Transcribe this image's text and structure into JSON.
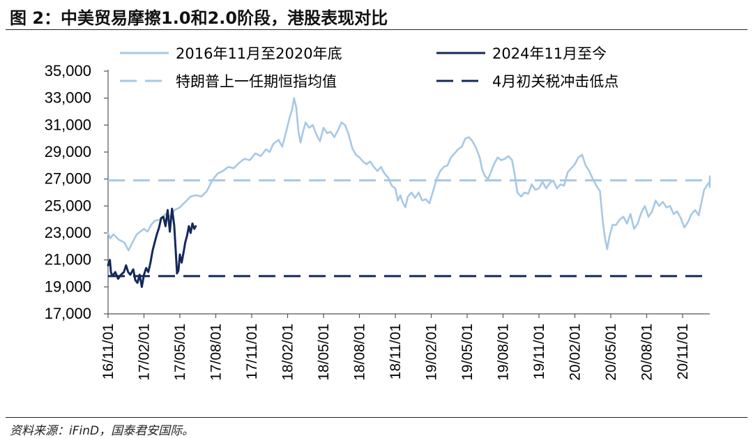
{
  "header": {
    "title": "图 2：中美贸易摩擦1.0和2.0阶段，港股表现对比"
  },
  "footer": {
    "source": "资料来源：iFinD，国泰君安国际。"
  },
  "colors": {
    "light": "#a6c8e6",
    "dark": "#14285a",
    "axis": "#555555"
  },
  "chart_data": {
    "type": "line",
    "title": "",
    "xlabel": "",
    "ylabel": "",
    "ylim": [
      17000,
      35000
    ],
    "yticks": [
      17000,
      19000,
      21000,
      23000,
      25000,
      27000,
      29000,
      31000,
      33000,
      35000
    ],
    "ytick_labels": [
      "17,000",
      "19,000",
      "21,000",
      "23,000",
      "25,000",
      "27,000",
      "29,000",
      "31,000",
      "33,000",
      "35,000"
    ],
    "xtick_labels": [
      "16/11/01",
      "17/02/01",
      "17/05/01",
      "17/08/01",
      "17/11/01",
      "18/02/01",
      "18/05/01",
      "18/08/01",
      "18/11/01",
      "19/02/01",
      "19/05/01",
      "19/08/01",
      "19/11/01",
      "20/02/01",
      "20/05/01",
      "20/08/01",
      "20/11/01"
    ],
    "legend_position": "top",
    "grid": false,
    "series": [
      {
        "name": "2016年11月至2020年底",
        "style": "solid",
        "color": "#a6c8e6",
        "points": [
          [
            0.0,
            23000
          ],
          [
            0.06,
            22600
          ],
          [
            0.15,
            22900
          ],
          [
            0.3,
            22500
          ],
          [
            0.45,
            22300
          ],
          [
            0.57,
            21700
          ],
          [
            0.68,
            22300
          ],
          [
            0.8,
            22900
          ],
          [
            1.0,
            23300
          ],
          [
            1.1,
            23100
          ],
          [
            1.2,
            23600
          ],
          [
            1.3,
            23900
          ],
          [
            1.45,
            24000
          ],
          [
            1.6,
            24400
          ],
          [
            1.75,
            24200
          ],
          [
            1.85,
            24700
          ],
          [
            2.0,
            24900
          ],
          [
            2.15,
            25300
          ],
          [
            2.3,
            25700
          ],
          [
            2.45,
            25800
          ],
          [
            2.6,
            25700
          ],
          [
            2.75,
            26100
          ],
          [
            2.9,
            26900
          ],
          [
            3.05,
            27400
          ],
          [
            3.2,
            27600
          ],
          [
            3.35,
            27900
          ],
          [
            3.5,
            27800
          ],
          [
            3.65,
            28200
          ],
          [
            3.8,
            28500
          ],
          [
            3.95,
            28400
          ],
          [
            4.1,
            28900
          ],
          [
            4.25,
            28700
          ],
          [
            4.4,
            29200
          ],
          [
            4.5,
            29000
          ],
          [
            4.6,
            29600
          ],
          [
            4.75,
            29900
          ],
          [
            4.85,
            29400
          ],
          [
            4.95,
            30400
          ],
          [
            5.05,
            31500
          ],
          [
            5.12,
            32100
          ],
          [
            5.18,
            33000
          ],
          [
            5.24,
            32300
          ],
          [
            5.3,
            30600
          ],
          [
            5.36,
            29700
          ],
          [
            5.42,
            30400
          ],
          [
            5.5,
            31200
          ],
          [
            5.6,
            30800
          ],
          [
            5.7,
            31000
          ],
          [
            5.8,
            30300
          ],
          [
            5.9,
            29800
          ],
          [
            6.0,
            30800
          ],
          [
            6.1,
            30400
          ],
          [
            6.2,
            30500
          ],
          [
            6.3,
            30100
          ],
          [
            6.4,
            30600
          ],
          [
            6.5,
            31200
          ],
          [
            6.6,
            31000
          ],
          [
            6.7,
            30300
          ],
          [
            6.8,
            29300
          ],
          [
            6.9,
            28800
          ],
          [
            7.0,
            28600
          ],
          [
            7.1,
            28300
          ],
          [
            7.2,
            28100
          ],
          [
            7.3,
            28300
          ],
          [
            7.4,
            27900
          ],
          [
            7.5,
            27600
          ],
          [
            7.6,
            27900
          ],
          [
            7.7,
            27400
          ],
          [
            7.8,
            27100
          ],
          [
            7.9,
            26500
          ],
          [
            8.0,
            26300
          ],
          [
            8.07,
            25400
          ],
          [
            8.14,
            25800
          ],
          [
            8.2,
            25300
          ],
          [
            8.28,
            24900
          ],
          [
            8.35,
            25700
          ],
          [
            8.45,
            26000
          ],
          [
            8.55,
            25600
          ],
          [
            8.65,
            26000
          ],
          [
            8.75,
            25400
          ],
          [
            8.85,
            25500
          ],
          [
            8.95,
            25200
          ],
          [
            9.05,
            26100
          ],
          [
            9.15,
            27000
          ],
          [
            9.25,
            27600
          ],
          [
            9.35,
            27900
          ],
          [
            9.45,
            28000
          ],
          [
            9.55,
            28600
          ],
          [
            9.65,
            28900
          ],
          [
            9.75,
            29200
          ],
          [
            9.85,
            29400
          ],
          [
            9.95,
            30000
          ],
          [
            10.05,
            30100
          ],
          [
            10.15,
            29800
          ],
          [
            10.25,
            29300
          ],
          [
            10.35,
            28600
          ],
          [
            10.42,
            27700
          ],
          [
            10.5,
            27200
          ],
          [
            10.58,
            27000
          ],
          [
            10.66,
            27500
          ],
          [
            10.75,
            28100
          ],
          [
            10.85,
            28600
          ],
          [
            10.95,
            28400
          ],
          [
            11.05,
            28500
          ],
          [
            11.15,
            28700
          ],
          [
            11.25,
            28400
          ],
          [
            11.32,
            27400
          ],
          [
            11.4,
            26000
          ],
          [
            11.5,
            25700
          ],
          [
            11.6,
            26000
          ],
          [
            11.7,
            25900
          ],
          [
            11.8,
            26600
          ],
          [
            11.9,
            26200
          ],
          [
            12.0,
            26300
          ],
          [
            12.1,
            26800
          ],
          [
            12.2,
            26300
          ],
          [
            12.3,
            26700
          ],
          [
            12.4,
            26900
          ],
          [
            12.5,
            26300
          ],
          [
            12.6,
            26600
          ],
          [
            12.7,
            26500
          ],
          [
            12.8,
            27500
          ],
          [
            12.9,
            27800
          ],
          [
            13.0,
            28100
          ],
          [
            13.1,
            28600
          ],
          [
            13.2,
            28800
          ],
          [
            13.3,
            28000
          ],
          [
            13.4,
            27600
          ],
          [
            13.5,
            27000
          ],
          [
            13.6,
            26500
          ],
          [
            13.7,
            26100
          ],
          [
            13.78,
            23800
          ],
          [
            13.84,
            22600
          ],
          [
            13.9,
            21800
          ],
          [
            13.96,
            22700
          ],
          [
            14.05,
            23600
          ],
          [
            14.15,
            23600
          ],
          [
            14.25,
            24000
          ],
          [
            14.35,
            24200
          ],
          [
            14.45,
            23700
          ],
          [
            14.55,
            24400
          ],
          [
            14.65,
            23300
          ],
          [
            14.75,
            23700
          ],
          [
            14.85,
            24500
          ],
          [
            14.95,
            25000
          ],
          [
            15.05,
            24200
          ],
          [
            15.15,
            24600
          ],
          [
            15.25,
            25400
          ],
          [
            15.35,
            25000
          ],
          [
            15.45,
            25300
          ],
          [
            15.55,
            24900
          ],
          [
            15.65,
            25000
          ],
          [
            15.75,
            24400
          ],
          [
            15.85,
            24600
          ],
          [
            15.95,
            24100
          ],
          [
            16.05,
            23400
          ],
          [
            16.15,
            23800
          ],
          [
            16.25,
            24400
          ],
          [
            16.35,
            24700
          ],
          [
            16.45,
            24300
          ],
          [
            16.52,
            25200
          ],
          [
            16.6,
            26200
          ],
          [
            16.7,
            26600
          ],
          [
            16.8,
            26800
          ],
          [
            16.9,
            26600
          ],
          [
            17.0,
            26500
          ],
          [
            17.08,
            26400
          ],
          [
            17.15,
            26900
          ],
          [
            17.2,
            27200
          ]
        ]
      },
      {
        "name": "2024年11月至今",
        "style": "solid",
        "color": "#14285a",
        "points": [
          [
            0.0,
            20600
          ],
          [
            0.05,
            21000
          ],
          [
            0.08,
            20100
          ],
          [
            0.12,
            19800
          ],
          [
            0.2,
            20100
          ],
          [
            0.28,
            19600
          ],
          [
            0.36,
            19900
          ],
          [
            0.44,
            20100
          ],
          [
            0.5,
            20600
          ],
          [
            0.56,
            20100
          ],
          [
            0.62,
            19900
          ],
          [
            0.7,
            20300
          ],
          [
            0.76,
            19500
          ],
          [
            0.82,
            19300
          ],
          [
            0.88,
            19900
          ],
          [
            0.94,
            19000
          ],
          [
            1.0,
            19900
          ],
          [
            1.06,
            20400
          ],
          [
            1.12,
            20100
          ],
          [
            1.18,
            20800
          ],
          [
            1.24,
            21700
          ],
          [
            1.3,
            22300
          ],
          [
            1.36,
            22900
          ],
          [
            1.42,
            23400
          ],
          [
            1.48,
            24100
          ],
          [
            1.54,
            24200
          ],
          [
            1.6,
            23500
          ],
          [
            1.66,
            24700
          ],
          [
            1.72,
            23100
          ],
          [
            1.78,
            24800
          ],
          [
            1.84,
            23600
          ],
          [
            1.88,
            21900
          ],
          [
            1.92,
            20000
          ],
          [
            1.96,
            20200
          ],
          [
            2.0,
            21400
          ],
          [
            2.05,
            20800
          ],
          [
            2.1,
            21500
          ],
          [
            2.15,
            22300
          ],
          [
            2.2,
            22800
          ],
          [
            2.25,
            23500
          ],
          [
            2.3,
            23000
          ],
          [
            2.35,
            23700
          ],
          [
            2.4,
            23300
          ],
          [
            2.44,
            23500
          ]
        ]
      },
      {
        "name": "特朗普上一任期恒指均值",
        "style": "dashed",
        "color": "#a6c8e6",
        "value": 26900
      },
      {
        "name": "4月初关税冲击低点",
        "style": "dashed",
        "color": "#14285a",
        "value": 19800
      }
    ]
  }
}
